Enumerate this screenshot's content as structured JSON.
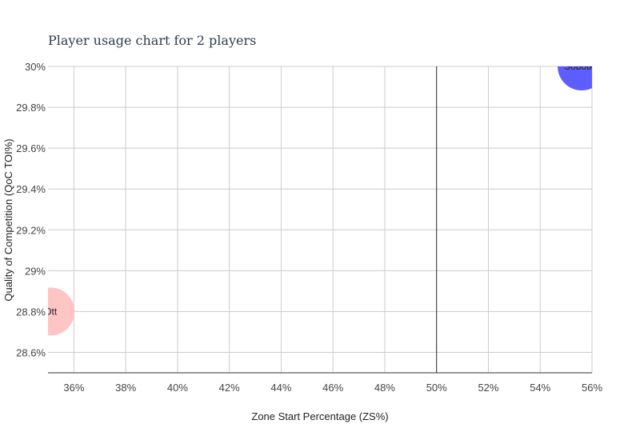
{
  "chart_data": {
    "type": "scatter",
    "title": "Player usage chart for 2 players",
    "xlabel": "Zone Start Percentage (ZS%)",
    "ylabel": "Quality of Competition (QoC TOI%)",
    "xlim": [
      35,
      56
    ],
    "ylim": [
      28.5,
      30
    ],
    "x_ticks": [
      "36%",
      "38%",
      "40%",
      "42%",
      "44%",
      "46%",
      "48%",
      "50%",
      "52%",
      "54%",
      "56%"
    ],
    "y_ticks": [
      "28.6%",
      "28.8%",
      "29%",
      "29.2%",
      "29.4%",
      "29.6%",
      "29.8%",
      "30%"
    ],
    "reference_line_x": 50,
    "grid": true,
    "points": [
      {
        "label": "Sobotka",
        "x": 55.6,
        "y": 30.0,
        "color": "#5555ff"
      },
      {
        "label": "Ott",
        "x": 35.1,
        "y": 28.8,
        "color": "#ffc2c2"
      }
    ]
  }
}
